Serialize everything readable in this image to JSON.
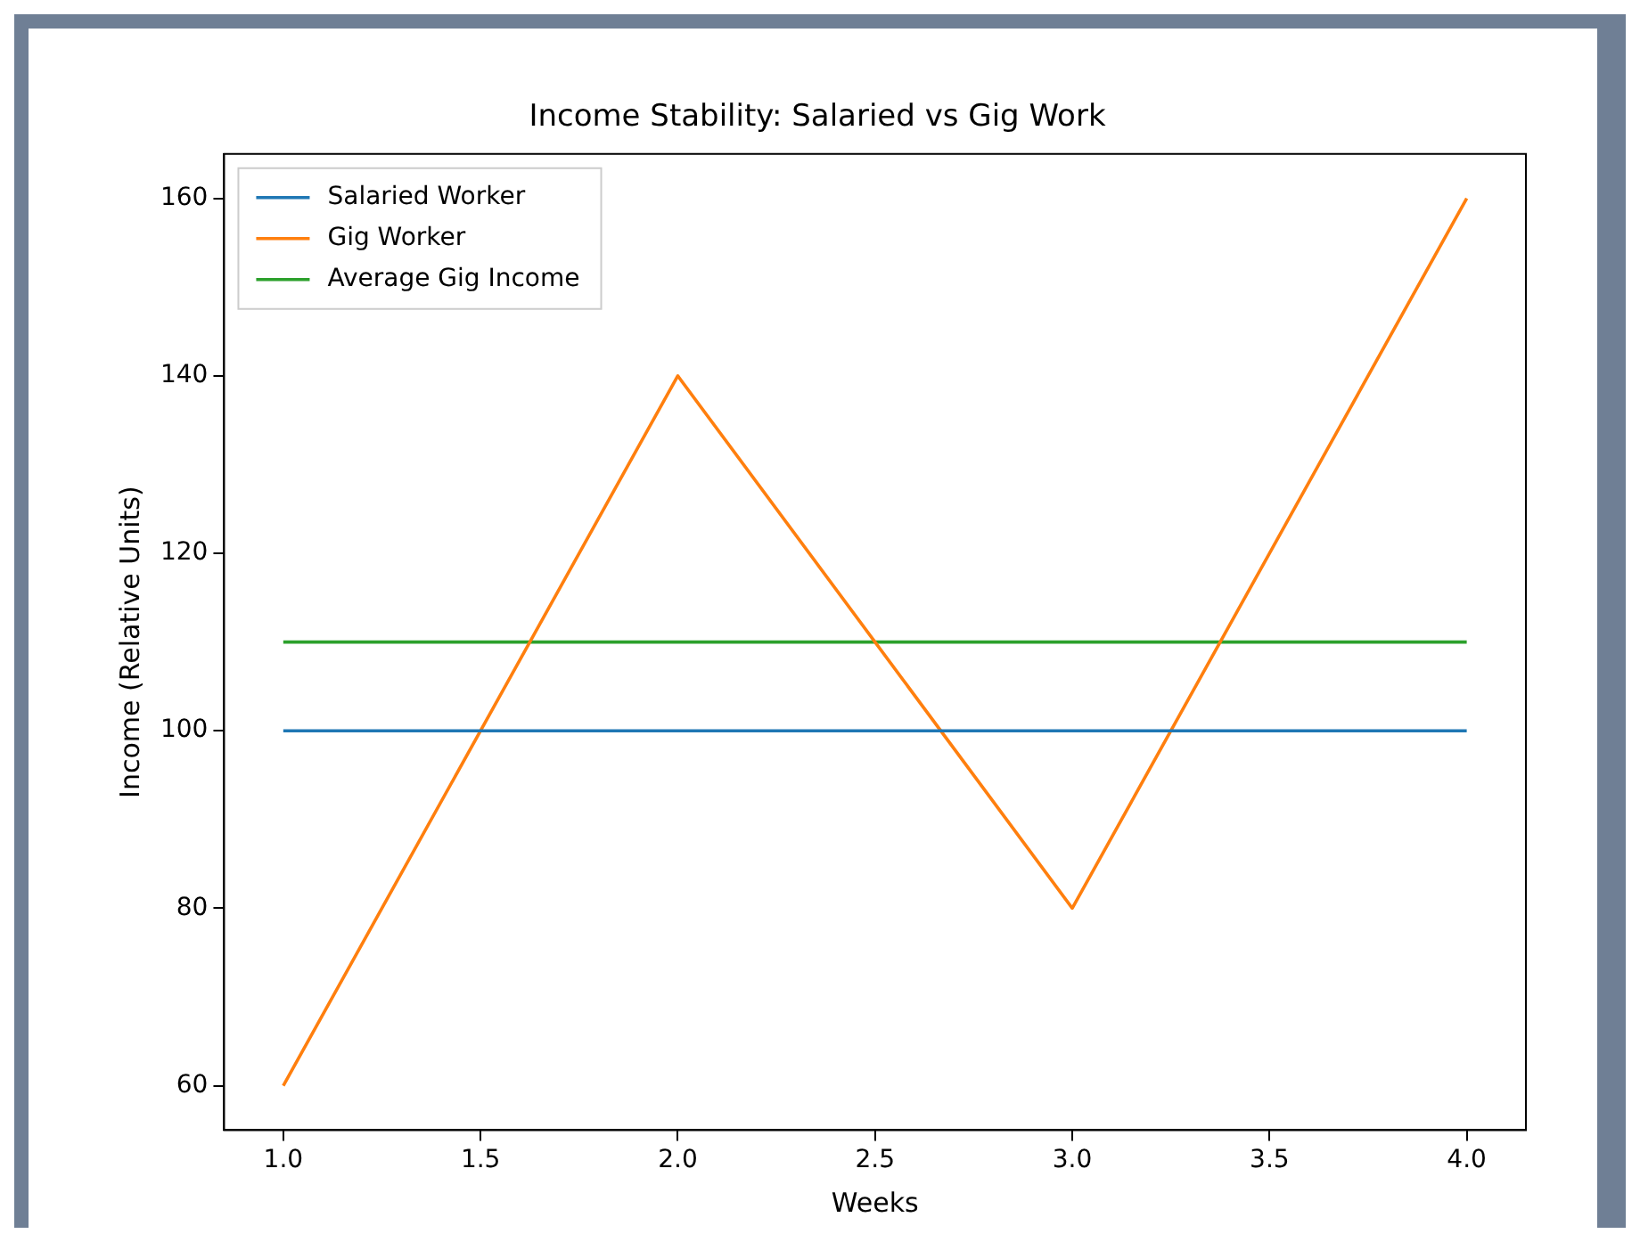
{
  "chart_data": {
    "type": "line",
    "title": "Income Stability: Salaried vs Gig Work",
    "xlabel": "Weeks",
    "ylabel": "Income (Relative Units)",
    "x": [
      1,
      2,
      3,
      4
    ],
    "series": [
      {
        "name": "Salaried Worker",
        "color": "#1f77b4",
        "values": [
          100,
          100,
          100,
          100
        ]
      },
      {
        "name": "Gig Worker",
        "color": "#ff7f0e",
        "values": [
          60,
          140,
          80,
          160
        ]
      },
      {
        "name": "Average Gig Income",
        "color": "#2ca02c",
        "values": [
          110,
          110,
          110,
          110
        ]
      }
    ],
    "xlim": [
      0.85,
      4.15
    ],
    "xticks": [
      {
        "value": 1,
        "label": "1.0"
      },
      {
        "value": 1.5,
        "label": "1.5"
      },
      {
        "value": 2,
        "label": "2.0"
      },
      {
        "value": 2.5,
        "label": "2.5"
      },
      {
        "value": 3,
        "label": "3.0"
      },
      {
        "value": 3.5,
        "label": "3.5"
      },
      {
        "value": 4,
        "label": "4.0"
      }
    ],
    "ylim": [
      55,
      165
    ],
    "yticks": [
      60,
      80,
      100,
      120,
      140,
      160
    ],
    "grid": false,
    "legend": "top left",
    "marker": "none",
    "line_style": "solid"
  }
}
